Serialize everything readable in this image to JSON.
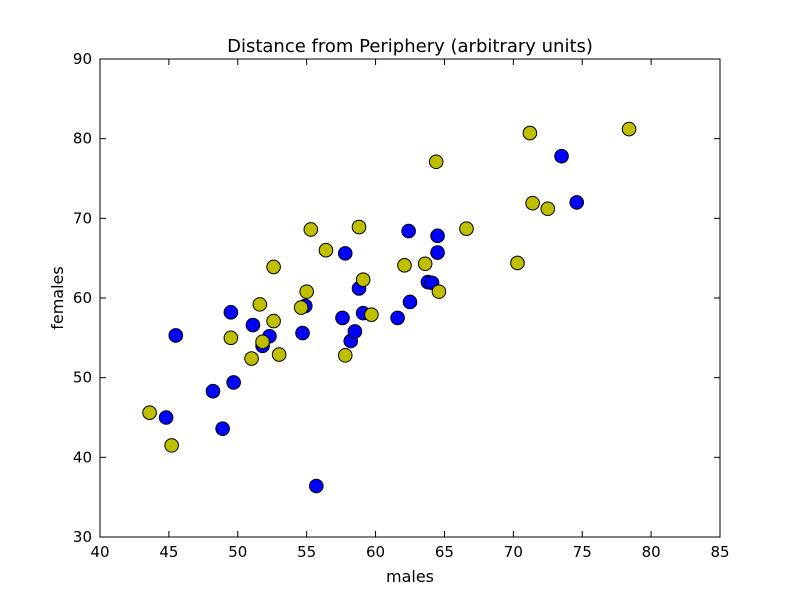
{
  "chart_data": {
    "type": "scatter",
    "title": "Distance from Periphery (arbitrary units)",
    "xlabel": "males",
    "ylabel": "females",
    "xlim": [
      40,
      85
    ],
    "ylim": [
      30,
      90
    ],
    "xticks": [
      40,
      45,
      50,
      55,
      60,
      65,
      70,
      75,
      80,
      85
    ],
    "yticks": [
      30,
      40,
      50,
      60,
      70,
      80,
      90
    ],
    "grid": false,
    "series": [
      {
        "color": "#0000ff",
        "points": [
          [
            45.5,
            55.3
          ],
          [
            44.8,
            45.0
          ],
          [
            48.2,
            48.3
          ],
          [
            49.7,
            49.4
          ],
          [
            48.9,
            43.6
          ],
          [
            49.5,
            58.2
          ],
          [
            51.1,
            56.6
          ],
          [
            52.3,
            55.2
          ],
          [
            51.8,
            54.0
          ],
          [
            54.7,
            55.6
          ],
          [
            54.9,
            59.0
          ],
          [
            55.7,
            36.4
          ],
          [
            57.6,
            57.5
          ],
          [
            57.8,
            65.6
          ],
          [
            58.2,
            54.6
          ],
          [
            58.5,
            55.8
          ],
          [
            58.8,
            61.2
          ],
          [
            59.1,
            58.1
          ],
          [
            61.6,
            57.5
          ],
          [
            62.4,
            68.4
          ],
          [
            62.5,
            59.5
          ],
          [
            63.8,
            62.0
          ],
          [
            64.1,
            61.9
          ],
          [
            64.5,
            67.8
          ],
          [
            64.5,
            65.7
          ],
          [
            73.5,
            77.8
          ],
          [
            74.6,
            72.0
          ]
        ]
      },
      {
        "color": "#bfbf00",
        "points": [
          [
            43.6,
            45.6
          ],
          [
            45.2,
            41.5
          ],
          [
            49.5,
            55.0
          ],
          [
            51.0,
            52.4
          ],
          [
            51.6,
            59.2
          ],
          [
            51.8,
            54.5
          ],
          [
            52.6,
            57.1
          ],
          [
            52.6,
            63.9
          ],
          [
            53.0,
            52.9
          ],
          [
            54.6,
            58.8
          ],
          [
            55.0,
            60.8
          ],
          [
            55.3,
            68.6
          ],
          [
            56.4,
            66.0
          ],
          [
            57.8,
            52.8
          ],
          [
            58.8,
            68.9
          ],
          [
            59.1,
            62.3
          ],
          [
            59.7,
            57.9
          ],
          [
            62.1,
            64.1
          ],
          [
            63.6,
            64.3
          ],
          [
            64.4,
            77.1
          ],
          [
            64.6,
            60.8
          ],
          [
            66.6,
            68.7
          ],
          [
            70.3,
            64.4
          ],
          [
            71.2,
            80.7
          ],
          [
            71.4,
            71.9
          ],
          [
            72.5,
            71.2
          ],
          [
            78.4,
            81.2
          ]
        ]
      }
    ]
  }
}
